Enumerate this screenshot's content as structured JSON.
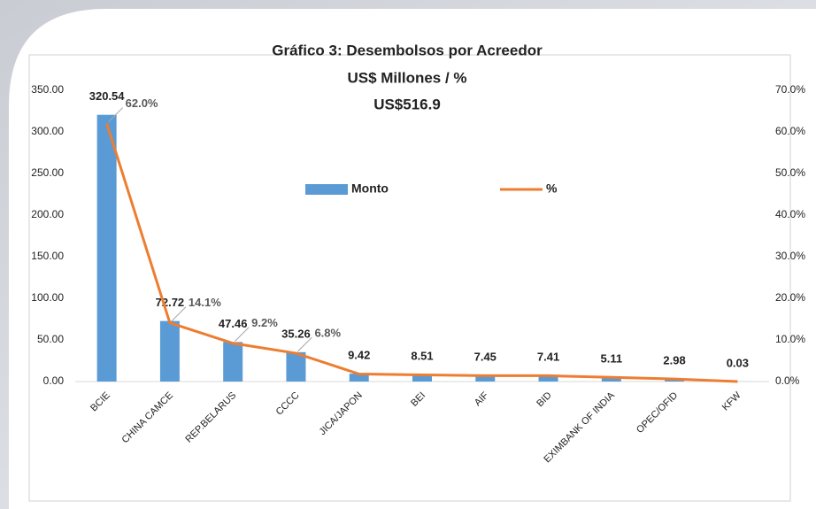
{
  "chart_data": {
    "type": "bar",
    "title": [
      "Gráfico 3: Desembolsos por Acreedor",
      "US$ Millones / %",
      "US$516.9"
    ],
    "categories": [
      "BCIE",
      "CHINA CAMCE",
      "REP.BELARUS",
      "CCCC",
      "JICA/JAPON",
      "BEI",
      "AIF",
      "BID",
      "EXIMBANK OF INDIA",
      "OPEC/OFID",
      "KFW"
    ],
    "series": [
      {
        "name": "Monto",
        "type": "bar",
        "color": "#5b9bd5",
        "values": [
          320.54,
          72.72,
          47.46,
          35.26,
          9.42,
          8.51,
          7.45,
          7.41,
          5.11,
          2.98,
          0.03
        ]
      },
      {
        "name": "%",
        "type": "line",
        "axis": "y2",
        "color": "#ed7d31",
        "values": [
          62.0,
          14.1,
          9.2,
          6.8,
          1.8,
          1.6,
          1.4,
          1.4,
          1.0,
          0.6,
          0.0
        ],
        "value_labels": [
          "62.0%",
          "14.1%",
          "9.2%",
          "6.8%",
          null,
          null,
          null,
          null,
          null,
          null,
          null
        ]
      }
    ],
    "ylim": [
      0,
      350
    ],
    "yticks": [
      {
        "value": 0,
        "label": "0.00"
      },
      {
        "value": 50,
        "label": "50.00"
      },
      {
        "value": 100,
        "label": "100.00"
      },
      {
        "value": 150,
        "label": "150.00"
      },
      {
        "value": 200,
        "label": "200.00"
      },
      {
        "value": 250,
        "label": "250.00"
      },
      {
        "value": 300,
        "label": "300.00"
      },
      {
        "value": 350,
        "label": "350.00"
      }
    ],
    "y2lim": [
      0,
      70
    ],
    "y2ticks": [
      {
        "value": 0,
        "label": "0.0%"
      },
      {
        "value": 10,
        "label": "10.0%"
      },
      {
        "value": 20,
        "label": "20.0%"
      },
      {
        "value": 30,
        "label": "30.0%"
      },
      {
        "value": 40,
        "label": "40.0%"
      },
      {
        "value": 50,
        "label": "50.0%"
      },
      {
        "value": 60,
        "label": "60.0%"
      },
      {
        "value": 70,
        "label": "70.0%"
      }
    ],
    "legend": "top"
  }
}
